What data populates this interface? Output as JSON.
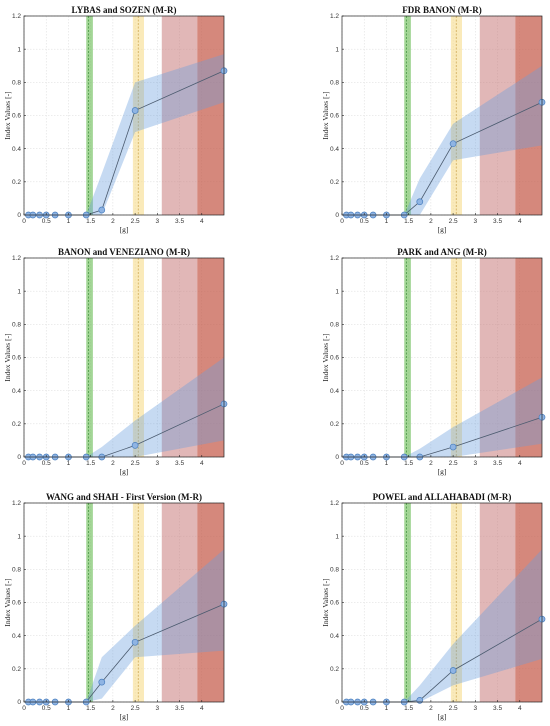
{
  "chart_data": [
    {
      "type": "line",
      "title": "LYBAS and SOZEN (M-R)",
      "xlabel": "[g]",
      "ylabel": "Index Values [-]",
      "xlim": [
        0,
        4.5
      ],
      "ylim": [
        0,
        1.2
      ],
      "x_ticks": [
        0,
        0.5,
        1,
        1.5,
        2,
        2.5,
        3,
        3.5,
        4
      ],
      "y_ticks": [
        0,
        0.2,
        0.4,
        0.6,
        0.8,
        1,
        1.2
      ],
      "grid": true,
      "series": [
        {
          "x": [
            0.1,
            0.2,
            0.35,
            0.5,
            0.7,
            1.0,
            1.4,
            1.75,
            2.5,
            4.5
          ],
          "y": [
            0,
            0,
            0,
            0,
            0,
            0,
            0,
            0.03,
            0.63,
            0.87
          ],
          "lower": [
            0,
            0,
            0,
            0,
            0,
            0,
            0,
            0.0,
            0.5,
            0.68
          ],
          "upper": [
            0,
            0,
            0,
            0,
            0,
            0,
            0,
            0.25,
            0.8,
            0.97
          ]
        }
      ],
      "bands": [
        {
          "from": 1.4,
          "to": 1.55,
          "center": 1.45,
          "color": "#7cc46a"
        },
        {
          "from": 2.45,
          "to": 2.7,
          "center": 2.57,
          "color": "#f6dc8c"
        },
        {
          "from": 3.1,
          "to": 3.9,
          "color": "#c97b7b"
        },
        {
          "from": 3.9,
          "to": 4.5,
          "color": "#c55a4a"
        }
      ]
    },
    {
      "type": "line",
      "title": "FDR BANON (M-R)",
      "xlabel": "[g]",
      "ylabel": "Index Values [-]",
      "xlim": [
        0,
        4.5
      ],
      "ylim": [
        0,
        1.2
      ],
      "x_ticks": [
        0,
        0.5,
        1,
        1.5,
        2,
        2.5,
        3,
        3.5,
        4
      ],
      "y_ticks": [
        0,
        0.2,
        0.4,
        0.6,
        0.8,
        1,
        1.2
      ],
      "grid": true,
      "series": [
        {
          "x": [
            0.1,
            0.2,
            0.35,
            0.5,
            0.7,
            1.0,
            1.4,
            1.75,
            2.5,
            4.5
          ],
          "y": [
            0,
            0,
            0,
            0,
            0,
            0,
            0,
            0.08,
            0.43,
            0.68
          ],
          "lower": [
            0,
            0,
            0,
            0,
            0,
            0,
            0,
            0.0,
            0.33,
            0.42
          ],
          "upper": [
            0,
            0,
            0,
            0,
            0,
            0,
            0,
            0.22,
            0.55,
            0.9
          ]
        }
      ],
      "bands": [
        {
          "from": 1.4,
          "to": 1.55,
          "center": 1.45,
          "color": "#7cc46a"
        },
        {
          "from": 2.45,
          "to": 2.7,
          "center": 2.57,
          "color": "#f6dc8c"
        },
        {
          "from": 3.1,
          "to": 3.9,
          "color": "#c97b7b"
        },
        {
          "from": 3.9,
          "to": 4.5,
          "color": "#c55a4a"
        }
      ]
    },
    {
      "type": "line",
      "title": "BANON and VENEZIANO (M-R)",
      "xlabel": "[g]",
      "ylabel": "Index Values [-]",
      "xlim": [
        0,
        4.5
      ],
      "ylim": [
        0,
        1.2
      ],
      "x_ticks": [
        0,
        0.5,
        1,
        1.5,
        2,
        2.5,
        3,
        3.5,
        4
      ],
      "y_ticks": [
        0,
        0.2,
        0.4,
        0.6,
        0.8,
        1,
        1.2
      ],
      "grid": true,
      "series": [
        {
          "x": [
            0.1,
            0.2,
            0.35,
            0.5,
            0.7,
            1.0,
            1.4,
            1.75,
            2.5,
            4.5
          ],
          "y": [
            0,
            0,
            0,
            0,
            0,
            0,
            0,
            0.0,
            0.07,
            0.32
          ],
          "lower": [
            0,
            0,
            0,
            0,
            0,
            0,
            0,
            0.0,
            0.0,
            0.1
          ],
          "upper": [
            0,
            0,
            0,
            0,
            0,
            0,
            0,
            0.06,
            0.22,
            0.6
          ]
        }
      ],
      "bands": [
        {
          "from": 1.4,
          "to": 1.55,
          "center": 1.45,
          "color": "#7cc46a"
        },
        {
          "from": 2.45,
          "to": 2.7,
          "center": 2.57,
          "color": "#f6dc8c"
        },
        {
          "from": 3.1,
          "to": 3.9,
          "color": "#c97b7b"
        },
        {
          "from": 3.9,
          "to": 4.5,
          "color": "#c55a4a"
        }
      ]
    },
    {
      "type": "line",
      "title": "PARK and ANG (M-R)",
      "xlabel": "[g]",
      "ylabel": "Index Values [-]",
      "xlim": [
        0,
        4.5
      ],
      "ylim": [
        0,
        1.2
      ],
      "x_ticks": [
        0,
        0.5,
        1,
        1.5,
        2,
        2.5,
        3,
        3.5,
        4
      ],
      "y_ticks": [
        0,
        0.2,
        0.4,
        0.6,
        0.8,
        1,
        1.2
      ],
      "grid": true,
      "series": [
        {
          "x": [
            0.1,
            0.2,
            0.35,
            0.5,
            0.7,
            1.0,
            1.4,
            1.75,
            2.5,
            4.5
          ],
          "y": [
            0,
            0,
            0,
            0,
            0,
            0,
            0,
            0.0,
            0.06,
            0.24
          ],
          "lower": [
            0,
            0,
            0,
            0,
            0,
            0,
            0,
            0.0,
            0.0,
            0.08
          ],
          "upper": [
            0,
            0,
            0,
            0,
            0,
            0,
            0,
            0.05,
            0.18,
            0.48
          ]
        }
      ],
      "bands": [
        {
          "from": 1.4,
          "to": 1.55,
          "center": 1.45,
          "color": "#7cc46a"
        },
        {
          "from": 2.45,
          "to": 2.7,
          "center": 2.57,
          "color": "#f6dc8c"
        },
        {
          "from": 3.1,
          "to": 3.9,
          "color": "#c97b7b"
        },
        {
          "from": 3.9,
          "to": 4.5,
          "color": "#c55a4a"
        }
      ]
    },
    {
      "type": "line",
      "title": "WANG and SHAH - First Version (M-R)",
      "xlabel": "[g]",
      "ylabel": "Index Values [-]",
      "xlim": [
        0,
        4.5
      ],
      "ylim": [
        0,
        1.2
      ],
      "x_ticks": [
        0,
        0.5,
        1,
        1.5,
        2,
        2.5,
        3,
        3.5,
        4
      ],
      "y_ticks": [
        0,
        0.2,
        0.4,
        0.6,
        0.8,
        1,
        1.2
      ],
      "grid": true,
      "series": [
        {
          "x": [
            0.1,
            0.2,
            0.35,
            0.5,
            0.7,
            1.0,
            1.4,
            1.75,
            2.5,
            4.5
          ],
          "y": [
            0,
            0,
            0,
            0,
            0,
            0,
            0,
            0.12,
            0.36,
            0.59
          ],
          "lower": [
            0,
            0,
            0,
            0,
            0,
            0,
            0,
            0.02,
            0.27,
            0.31
          ],
          "upper": [
            0,
            0,
            0,
            0,
            0,
            0,
            0,
            0.27,
            0.46,
            0.92
          ]
        }
      ],
      "bands": [
        {
          "from": 1.4,
          "to": 1.55,
          "center": 1.45,
          "color": "#7cc46a"
        },
        {
          "from": 2.45,
          "to": 2.7,
          "center": 2.57,
          "color": "#f6dc8c"
        },
        {
          "from": 3.1,
          "to": 3.9,
          "color": "#c97b7b"
        },
        {
          "from": 3.9,
          "to": 4.5,
          "color": "#c55a4a"
        }
      ]
    },
    {
      "type": "line",
      "title": "POWEL and ALLAHABADI (M-R)",
      "xlabel": "[g]",
      "ylabel": "Index Values [-]",
      "xlim": [
        0,
        4.5
      ],
      "ylim": [
        0,
        1.2
      ],
      "x_ticks": [
        0,
        0.5,
        1,
        1.5,
        2,
        2.5,
        3,
        3.5,
        4
      ],
      "y_ticks": [
        0,
        0.2,
        0.4,
        0.6,
        0.8,
        1,
        1.2
      ],
      "grid": true,
      "series": [
        {
          "x": [
            0.1,
            0.2,
            0.35,
            0.5,
            0.7,
            1.0,
            1.4,
            1.75,
            2.5,
            4.5
          ],
          "y": [
            0,
            0,
            0,
            0,
            0,
            0,
            0,
            0.01,
            0.19,
            0.5
          ],
          "lower": [
            0,
            0,
            0,
            0,
            0,
            0,
            0,
            0.0,
            0.1,
            0.26
          ],
          "upper": [
            0,
            0,
            0,
            0,
            0,
            0,
            0,
            0.1,
            0.35,
            0.92
          ]
        }
      ],
      "bands": [
        {
          "from": 1.4,
          "to": 1.55,
          "center": 1.45,
          "color": "#7cc46a"
        },
        {
          "from": 2.45,
          "to": 2.7,
          "center": 2.57,
          "color": "#f6dc8c"
        },
        {
          "from": 3.1,
          "to": 3.9,
          "color": "#c97b7b"
        },
        {
          "from": 3.9,
          "to": 4.5,
          "color": "#c55a4a"
        }
      ]
    }
  ]
}
